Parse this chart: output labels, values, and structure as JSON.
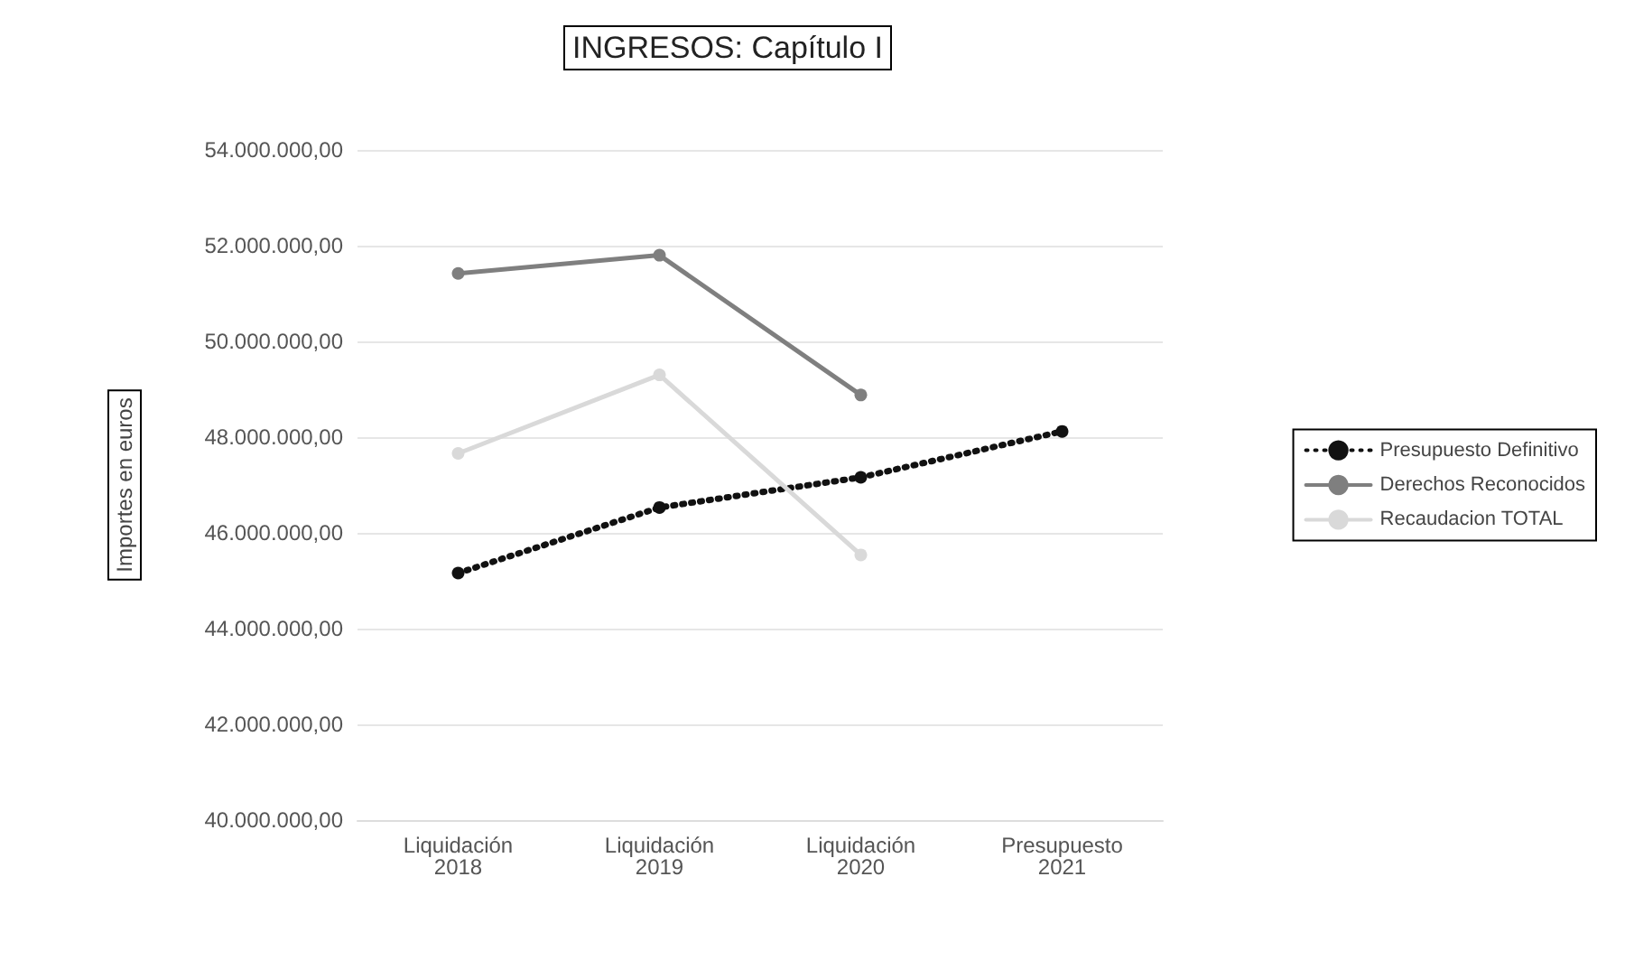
{
  "chart_data": {
    "type": "line",
    "title": "INGRESOS: Capítulo I",
    "ylabel": "Importes en euros",
    "categories": [
      "Liquidación 2018",
      "Liquidación 2019",
      "Liquidación 2020",
      "Presupuesto 2021"
    ],
    "series": [
      {
        "name": "Presupuesto Definitivo",
        "color": "#111111",
        "line_style": "dotted",
        "values": [
          45160000,
          46530000,
          47160000,
          48120000
        ]
      },
      {
        "name": "Derechos Reconocidos",
        "color": "#7f7f7f",
        "line_style": "solid",
        "values": [
          51420000,
          51800000,
          48880000,
          null
        ]
      },
      {
        "name": "Recaudacion TOTAL",
        "color": "#d9d9d9",
        "line_style": "solid",
        "values": [
          47660000,
          49300000,
          45540000,
          null
        ]
      }
    ],
    "ylim": [
      40000000,
      54000000
    ],
    "yticks": [
      {
        "value": 40000000,
        "label": "40.000.000,00"
      },
      {
        "value": 42000000,
        "label": "42.000.000,00"
      },
      {
        "value": 44000000,
        "label": "44.000.000,00"
      },
      {
        "value": 46000000,
        "label": "46.000.000,00"
      },
      {
        "value": 48000000,
        "label": "48.000.000,00"
      },
      {
        "value": 50000000,
        "label": "50.000.000,00"
      },
      {
        "value": 52000000,
        "label": "52.000.000,00"
      },
      {
        "value": 54000000,
        "label": "54.000.000,00"
      }
    ],
    "grid": "y",
    "legend": "right",
    "marker": "circle"
  }
}
